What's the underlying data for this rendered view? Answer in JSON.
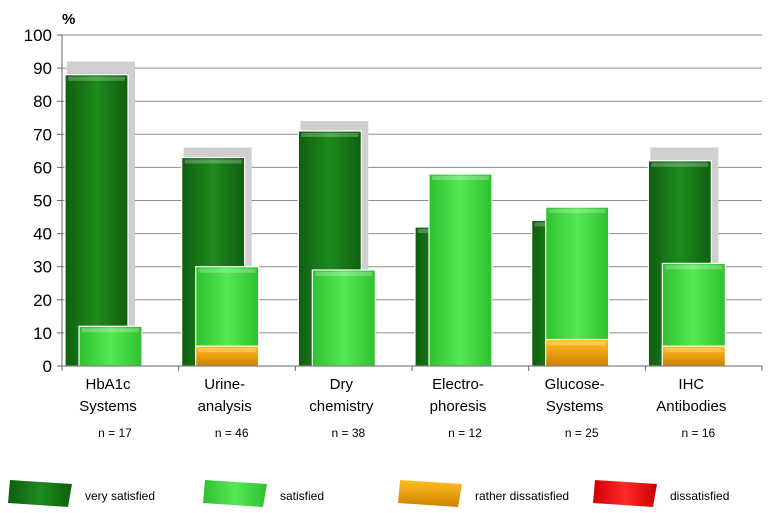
{
  "chart_data": {
    "type": "bar",
    "ylabel": "%",
    "ylim": [
      0,
      100
    ],
    "yticks": [
      0,
      10,
      20,
      30,
      40,
      50,
      60,
      70,
      80,
      90,
      100
    ],
    "grid": true,
    "legend_position": "bottom",
    "categories": [
      {
        "line1": "HbA1c",
        "line2": "Systems",
        "n": "n =  17"
      },
      {
        "line1": "Urine-",
        "line2": "analysis",
        "n": "n = 46"
      },
      {
        "line1": "Dry",
        "line2": "chemistry",
        "n": "n = 38"
      },
      {
        "line1": "Electro-",
        "line2": "phoresis",
        "n": "n = 12"
      },
      {
        "line1": "Glucose-",
        "line2": "Systems",
        "n": "n = 25"
      },
      {
        "line1": "IHC",
        "line2": "Antibodies",
        "n": "n = 16"
      }
    ],
    "totals": [
      92,
      66,
      74,
      0,
      0,
      66
    ],
    "series": [
      {
        "name": "very satisfied",
        "color": "#1a7a1a",
        "values": [
          88,
          63,
          71,
          42,
          44,
          62
        ]
      },
      {
        "name": "satisfied",
        "color": "#44dd44",
        "values": [
          12,
          30,
          29,
          58,
          48,
          31
        ]
      },
      {
        "name": "rather dissatisfied",
        "color": "#f0a000",
        "values": [
          0,
          6,
          0,
          0,
          8,
          6
        ]
      },
      {
        "name": "dissatisfied",
        "color": "#ee1111",
        "values": [
          0,
          0,
          0,
          0,
          0,
          0
        ]
      }
    ]
  }
}
